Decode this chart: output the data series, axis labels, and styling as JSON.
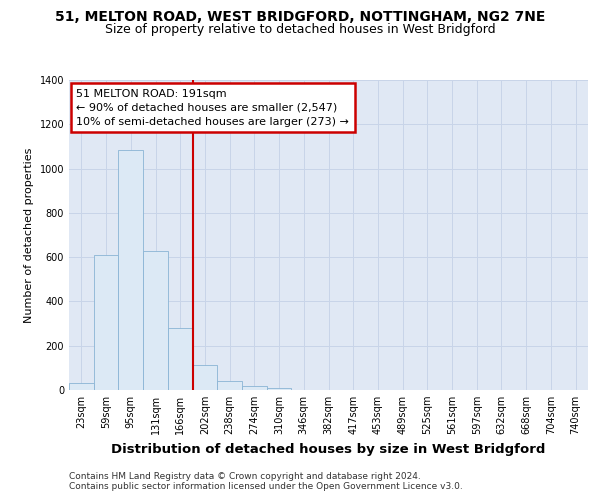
{
  "title_line1": "51, MELTON ROAD, WEST BRIDGFORD, NOTTINGHAM, NG2 7NE",
  "title_line2": "Size of property relative to detached houses in West Bridgford",
  "xlabel": "Distribution of detached houses by size in West Bridgford",
  "ylabel": "Number of detached properties",
  "footnote1": "Contains HM Land Registry data © Crown copyright and database right 2024.",
  "footnote2": "Contains public sector information licensed under the Open Government Licence v3.0.",
  "bin_labels": [
    "23sqm",
    "59sqm",
    "95sqm",
    "131sqm",
    "166sqm",
    "202sqm",
    "238sqm",
    "274sqm",
    "310sqm",
    "346sqm",
    "382sqm",
    "417sqm",
    "453sqm",
    "489sqm",
    "525sqm",
    "561sqm",
    "597sqm",
    "632sqm",
    "668sqm",
    "704sqm",
    "740sqm"
  ],
  "bar_heights": [
    30,
    610,
    1085,
    630,
    280,
    115,
    40,
    20,
    10,
    0,
    0,
    0,
    0,
    0,
    0,
    0,
    0,
    0,
    0,
    0,
    0
  ],
  "bar_color": "#dce9f5",
  "bar_edge_color": "#8ab4d4",
  "vline_x_index": 5,
  "vline_color": "#cc0000",
  "ylim": [
    0,
    1400
  ],
  "yticks": [
    0,
    200,
    400,
    600,
    800,
    1000,
    1200,
    1400
  ],
  "ann_line1": "51 MELTON ROAD: 191sqm",
  "ann_line2": "← 90% of detached houses are smaller (2,547)",
  "ann_line3": "10% of semi-detached houses are larger (273) →",
  "annotation_box_color": "#cc0000",
  "annotation_box_facecolor": "white",
  "grid_color": "#c8d4e8",
  "bg_color": "#e0e8f4",
  "title1_fontsize": 10,
  "title2_fontsize": 9,
  "ylabel_fontsize": 8,
  "xlabel_fontsize": 9.5,
  "tick_fontsize": 7,
  "footnote_fontsize": 6.5,
  "ann_fontsize": 8
}
